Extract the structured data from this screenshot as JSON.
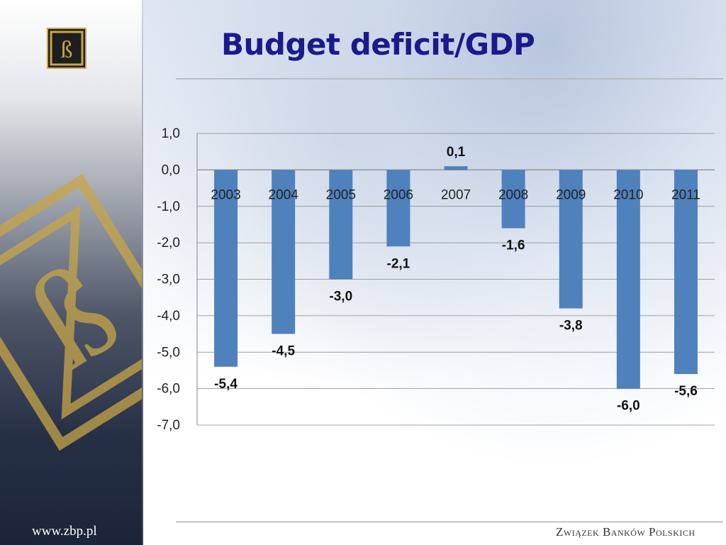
{
  "slide": {
    "title": "Budget deficit/GDP",
    "website": "www.zbp.pl",
    "organization": "Związek Banków Polskich"
  },
  "colors": {
    "title": "#1a1a8c",
    "bar": "#4f81bd",
    "gridline": "#868686",
    "logo_gold": "#c8a648",
    "sidebar_dark": "#1b2438"
  },
  "icons": {
    "logo_small": "zbp-logo-icon",
    "logo_large": "zbp-logo-watermark"
  },
  "chart_data": {
    "type": "bar",
    "categories": [
      "2003",
      "2004",
      "2005",
      "2006",
      "2007",
      "2008",
      "2009",
      "2010",
      "2011"
    ],
    "values": [
      -5.4,
      -4.5,
      -3.0,
      -2.1,
      0.1,
      -1.6,
      -3.8,
      -6.0,
      -5.6
    ],
    "data_labels": [
      "-5,4",
      "-4,5",
      "-3,0",
      "-2,1",
      "0,1",
      "-1,6",
      "-3,8",
      "-6,0",
      "-5,6"
    ],
    "y_ticks": [
      "1,0",
      "0,0",
      "-1,0",
      "-2,0",
      "-3,0",
      "-4,0",
      "-5,0",
      "-6,0",
      "-7,0"
    ],
    "ylim": [
      -7.0,
      1.0
    ],
    "grid": true,
    "xlabel": "",
    "ylabel": "",
    "category_labels_position": "along zero line"
  }
}
